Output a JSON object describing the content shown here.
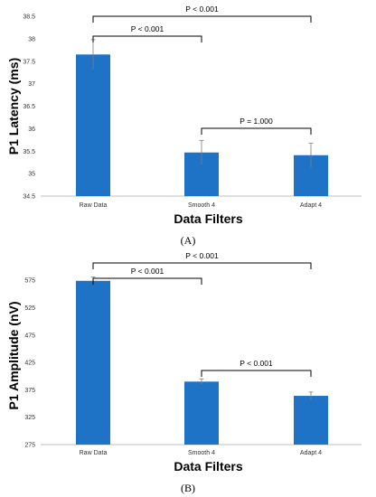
{
  "chart_data": [
    {
      "type": "bar",
      "panel_label": "(A)",
      "categories": [
        "Raw Data",
        "Smooth 4",
        "Adapt 4"
      ],
      "values": [
        37.65,
        35.47,
        35.41
      ],
      "errors": [
        0.33,
        0.27,
        0.27
      ],
      "xlabel": "Data Filters",
      "ylabel": "P1 Latency (ms)",
      "ylim": [
        34.5,
        38.5
      ],
      "yticks": [
        "34.5",
        "35",
        "35.5",
        "36",
        "36.5",
        "37",
        "37.5",
        "38",
        "38.5"
      ],
      "bar_color": "#1f73c6",
      "grid": false,
      "comparisons": [
        {
          "from": 0,
          "to": 2,
          "label": "P < 0.001"
        },
        {
          "from": 0,
          "to": 1,
          "label": "P < 0.001"
        },
        {
          "from": 1,
          "to": 2,
          "label": "P = 1.000"
        }
      ]
    },
    {
      "type": "bar",
      "panel_label": "(B)",
      "categories": [
        "Raw Data",
        "Smooth 4",
        "Adapt 4"
      ],
      "values": [
        574,
        390,
        364
      ],
      "errors": [
        7,
        5,
        7
      ],
      "xlabel": "Data Filters",
      "ylabel": "P1 Amplitude (nV)",
      "ylim": [
        275,
        600
      ],
      "yticks": [
        "275",
        "325",
        "375",
        "425",
        "475",
        "525",
        "575"
      ],
      "bar_color": "#1f73c6",
      "grid": false,
      "comparisons": [
        {
          "from": 0,
          "to": 2,
          "label": "P < 0.001"
        },
        {
          "from": 0,
          "to": 1,
          "label": "P < 0.001"
        },
        {
          "from": 1,
          "to": 2,
          "label": "P < 0.001"
        }
      ]
    }
  ]
}
